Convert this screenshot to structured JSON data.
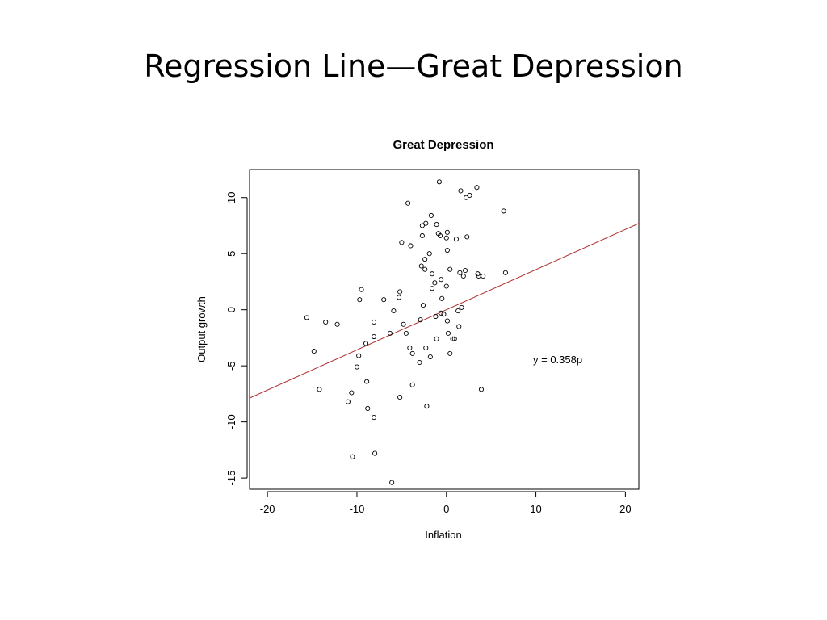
{
  "slide": {
    "title": "Regression Line—Great Depression"
  },
  "chart_data": {
    "type": "scatter",
    "title": "Great Depression",
    "xlabel": "Inflation",
    "ylabel": "Output growth",
    "xlim": [
      -22,
      21.5
    ],
    "ylim": [
      -16,
      12.5
    ],
    "xticks": [
      -20,
      -10,
      0,
      10,
      20
    ],
    "yticks": [
      -15,
      -10,
      -5,
      0,
      5,
      10
    ],
    "grid": false,
    "annotation": "y = 0.358p",
    "regression": {
      "slope": 0.358,
      "intercept": 0,
      "color": "#b03030"
    },
    "marker_color": "#000000",
    "points": [
      [
        -15.6,
        -0.7
      ],
      [
        -14.8,
        -3.7
      ],
      [
        -14.2,
        -7.1
      ],
      [
        -13.5,
        -1.1
      ],
      [
        -12.2,
        -1.3
      ],
      [
        -11.0,
        -8.2
      ],
      [
        -10.6,
        -7.4
      ],
      [
        -10.5,
        -13.1
      ],
      [
        -10.0,
        -5.1
      ],
      [
        -9.8,
        -4.1
      ],
      [
        -9.7,
        0.9
      ],
      [
        -9.5,
        1.8
      ],
      [
        -9.0,
        -3.0
      ],
      [
        -8.9,
        -6.4
      ],
      [
        -8.8,
        -8.8
      ],
      [
        -8.1,
        -1.1
      ],
      [
        -8.1,
        -2.4
      ],
      [
        -8.1,
        -9.6
      ],
      [
        -8.0,
        -12.8
      ],
      [
        -7.0,
        0.9
      ],
      [
        -6.3,
        -2.1
      ],
      [
        -6.1,
        -15.4
      ],
      [
        -5.9,
        -0.1
      ],
      [
        -5.3,
        1.1
      ],
      [
        -5.2,
        1.6
      ],
      [
        -5.2,
        -7.8
      ],
      [
        -5.0,
        6.0
      ],
      [
        -4.8,
        -1.3
      ],
      [
        -4.5,
        -2.1
      ],
      [
        -4.3,
        9.5
      ],
      [
        -4.1,
        -3.4
      ],
      [
        -4.0,
        5.7
      ],
      [
        -3.8,
        -3.9
      ],
      [
        -3.8,
        -6.7
      ],
      [
        -3.0,
        -4.7
      ],
      [
        -2.9,
        -0.9
      ],
      [
        -2.8,
        3.9
      ],
      [
        -2.7,
        7.5
      ],
      [
        -2.7,
        6.6
      ],
      [
        -2.6,
        0.4
      ],
      [
        -2.4,
        4.5
      ],
      [
        -2.4,
        3.6
      ],
      [
        -2.3,
        7.7
      ],
      [
        -2.3,
        -3.4
      ],
      [
        -2.2,
        -8.6
      ],
      [
        -1.9,
        5.0
      ],
      [
        -1.8,
        -4.2
      ],
      [
        -1.6,
        3.2
      ],
      [
        -1.6,
        1.9
      ],
      [
        -1.7,
        8.4
      ],
      [
        -1.3,
        2.4
      ],
      [
        -1.2,
        -0.6
      ],
      [
        -1.1,
        7.6
      ],
      [
        -1.1,
        -2.6
      ],
      [
        -0.9,
        6.8
      ],
      [
        -0.8,
        11.4
      ],
      [
        -0.7,
        6.6
      ],
      [
        -0.6,
        -0.3
      ],
      [
        -0.6,
        2.7
      ],
      [
        -0.5,
        1.0
      ],
      [
        -0.3,
        -0.4
      ],
      [
        0.0,
        6.4
      ],
      [
        0.0,
        2.1
      ],
      [
        0.1,
        6.9
      ],
      [
        0.1,
        5.3
      ],
      [
        0.1,
        -1.0
      ],
      [
        0.2,
        -2.1
      ],
      [
        0.4,
        3.6
      ],
      [
        0.4,
        -3.9
      ],
      [
        0.7,
        -2.6
      ],
      [
        0.9,
        -2.6
      ],
      [
        1.1,
        6.3
      ],
      [
        1.3,
        -0.1
      ],
      [
        1.4,
        -1.5
      ],
      [
        1.6,
        10.6
      ],
      [
        1.7,
        0.2
      ],
      [
        1.9,
        3.0
      ],
      [
        2.1,
        3.5
      ],
      [
        2.2,
        10.0
      ],
      [
        2.3,
        6.5
      ],
      [
        2.6,
        10.2
      ],
      [
        3.4,
        10.9
      ],
      [
        3.5,
        3.2
      ],
      [
        3.6,
        3.0
      ],
      [
        3.9,
        -7.1
      ],
      [
        4.1,
        3.0
      ],
      [
        6.4,
        8.8
      ],
      [
        6.6,
        3.3
      ],
      [
        1.5,
        3.3
      ]
    ]
  }
}
